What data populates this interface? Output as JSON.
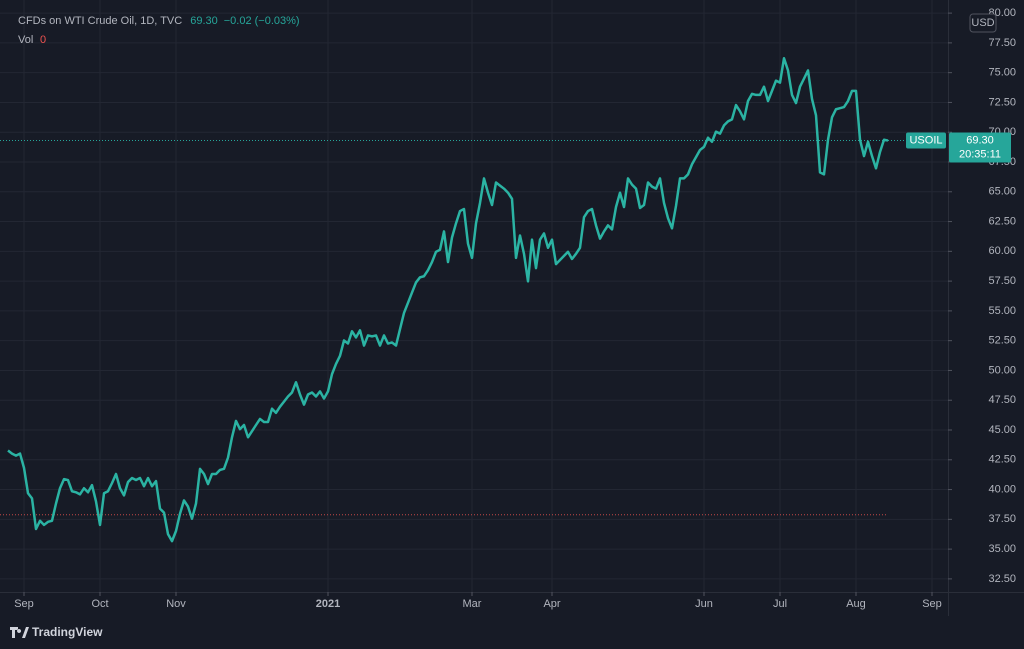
{
  "chart_data": {
    "type": "line",
    "title": "CFDs on WTI Crude Oil, 1D, TVC",
    "last_text": "69.30",
    "change_text": "−0.02 (−0.03%)",
    "volume_label": "Vol",
    "volume": 0,
    "currency": "USD",
    "ticker": "USOIL",
    "price_line": {
      "value": 69.3,
      "label": "69.30"
    },
    "countdown": "20:35:11",
    "low_line": 37.89,
    "brand": "TradingView",
    "color": "#2bb3a3",
    "grid": true,
    "xlim": [
      -2,
      235
    ],
    "xticks": [
      {
        "value": 4,
        "label": "Sep"
      },
      {
        "value": 23,
        "label": "Oct"
      },
      {
        "value": 42,
        "label": "Nov"
      },
      {
        "value": 80,
        "label": "2021"
      },
      {
        "value": 116,
        "label": "Mar"
      },
      {
        "value": 136,
        "label": "Apr"
      },
      {
        "value": 174,
        "label": "Jun"
      },
      {
        "value": 193,
        "label": "Jul"
      },
      {
        "value": 212,
        "label": "Aug"
      },
      {
        "value": 231,
        "label": "Sep"
      }
    ],
    "ylim": [
      31.4,
      81.1
    ],
    "yticks": [
      {
        "value": 32.5,
        "label": "32.50"
      },
      {
        "value": 35,
        "label": "35.00"
      },
      {
        "value": 37.5,
        "label": "37.50"
      },
      {
        "value": 40,
        "label": "40.00"
      },
      {
        "value": 42.5,
        "label": "42.50"
      },
      {
        "value": 45,
        "label": "45.00"
      },
      {
        "value": 47.5,
        "label": "47.50"
      },
      {
        "value": 50,
        "label": "50.00"
      },
      {
        "value": 52.5,
        "label": "52.50"
      },
      {
        "value": 55,
        "label": "55.00"
      },
      {
        "value": 57.5,
        "label": "57.50"
      },
      {
        "value": 60,
        "label": "60.00"
      },
      {
        "value": 62.5,
        "label": "62.50"
      },
      {
        "value": 65,
        "label": "65.00"
      },
      {
        "value": 67.5,
        "label": "67.50"
      },
      {
        "value": 70,
        "label": "70.00"
      },
      {
        "value": 72.5,
        "label": "72.50"
      },
      {
        "value": 75,
        "label": "75.00"
      },
      {
        "value": 77.5,
        "label": "77.50"
      },
      {
        "value": 80,
        "label": "80.00"
      }
    ],
    "values": [
      43.28,
      43.02,
      42.85,
      43.02,
      41.82,
      39.69,
      39.26,
      36.69,
      37.38,
      37.03,
      37.29,
      37.38,
      38.83,
      40.11,
      40.88,
      40.8,
      39.86,
      39.77,
      39.6,
      40.11,
      39.77,
      40.37,
      39.0,
      37.03,
      39.69,
      39.86,
      40.54,
      41.31,
      40.11,
      39.51,
      40.63,
      40.97,
      40.8,
      40.97,
      40.28,
      40.97,
      40.28,
      40.71,
      38.4,
      38.06,
      36.26,
      35.67,
      36.52,
      37.97,
      39.09,
      38.57,
      37.55,
      38.83,
      41.74,
      41.31,
      40.46,
      41.31,
      41.31,
      41.65,
      41.74,
      42.68,
      44.39,
      45.76,
      45.07,
      45.42,
      44.39,
      44.9,
      45.42,
      45.93,
      45.67,
      45.67,
      46.79,
      46.44,
      46.96,
      47.38,
      47.81,
      48.15,
      49.01,
      47.98,
      47.13,
      47.98,
      48.15,
      47.81,
      48.24,
      47.64,
      48.24,
      49.69,
      50.55,
      51.23,
      52.52,
      52.26,
      53.29,
      52.77,
      53.37,
      52.09,
      52.94,
      52.86,
      52.94,
      52.09,
      52.94,
      52.26,
      52.35,
      52.09,
      53.46,
      54.83,
      55.68,
      56.54,
      57.39,
      57.82,
      57.91,
      58.42,
      59.1,
      59.96,
      60.13,
      61.67,
      59.1,
      61.16,
      62.35,
      63.38,
      63.55,
      60.64,
      59.45,
      62.35,
      64.06,
      66.12,
      64.92,
      63.89,
      65.78,
      65.52,
      65.26,
      64.92,
      64.41,
      59.45,
      61.33,
      59.79,
      57.48,
      60.98,
      58.59,
      60.98,
      61.5,
      60.3,
      60.98,
      58.93,
      59.27,
      59.62,
      59.96,
      59.36,
      59.79,
      60.3,
      62.87,
      63.38,
      63.55,
      62.18,
      61.07,
      61.67,
      62.18,
      61.84,
      63.72,
      64.92,
      63.72,
      66.12,
      65.6,
      65.26,
      63.64,
      63.89,
      65.78,
      65.43,
      65.26,
      66.12,
      64.06,
      62.78,
      61.93,
      63.81,
      66.12,
      66.12,
      66.46,
      67.31,
      67.91,
      68.51,
      68.77,
      69.54,
      69.2,
      70.05,
      69.88,
      70.57,
      70.91,
      71.08,
      72.28,
      71.76,
      71.08,
      72.62,
      73.22,
      73.13,
      73.13,
      73.82,
      72.62,
      73.47,
      74.33,
      74.16,
      76.21,
      75.19,
      73.13,
      72.45,
      73.82,
      74.5,
      75.19,
      72.79,
      71.42,
      66.63,
      66.46,
      69.37,
      71.25,
      71.93,
      72.02,
      72.11,
      72.62,
      73.47,
      73.47,
      69.37,
      68.0,
      69.2,
      68.0,
      66.97,
      68.34,
      69.37,
      69.3
    ]
  }
}
